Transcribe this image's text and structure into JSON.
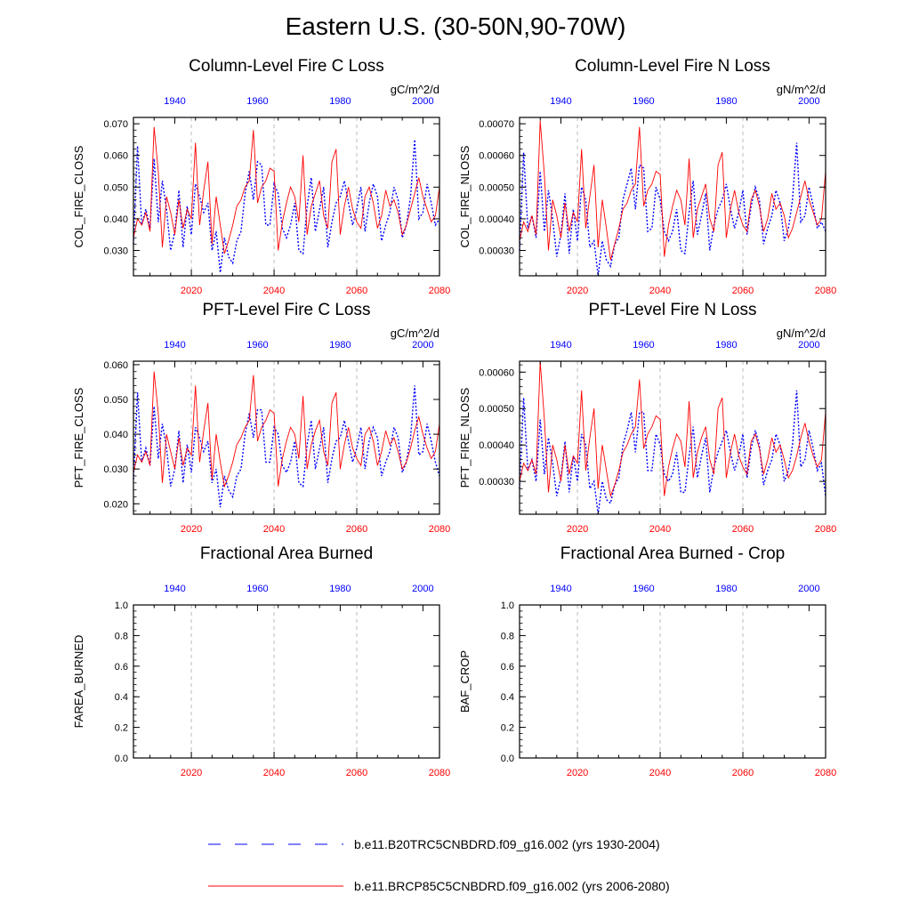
{
  "page": {
    "title": "Eastern U.S. (30-50N,90-70W)"
  },
  "colors": {
    "historical": "#0000ff",
    "future": "#ff0000",
    "grid": "#bbbbbb",
    "axis": "#000000"
  },
  "chart_data": [
    {
      "type": "line",
      "title": "Column-Level Fire C Loss",
      "units": "gC/m^2/d",
      "ylabel": "COL_FIRE_CLOSS",
      "ylim": [
        0.022,
        0.072
      ],
      "yticks": [
        "0.030",
        "0.040",
        "0.050",
        "0.060",
        "0.070"
      ],
      "bottom_axis": {
        "range": [
          2006,
          2080
        ],
        "ticks": [
          "2020",
          "2040",
          "2060",
          "2080"
        ]
      },
      "top_axis": {
        "range": [
          1930,
          2004
        ],
        "ticks": [
          "1940",
          "1960",
          "1980",
          "2000"
        ]
      },
      "grid": "vertical dashed at 2020, 2040, 2060",
      "series": [
        {
          "name": "b.e11.B20TRC5CNBDRD.f09_g16.002 (yrs 1930-2004)",
          "axis": "top",
          "style": "dashed",
          "x_start": 1930,
          "values": [
            0.032,
            0.063,
            0.038,
            0.043,
            0.037,
            0.059,
            0.039,
            0.052,
            0.043,
            0.03,
            0.036,
            0.049,
            0.031,
            0.044,
            0.035,
            0.051,
            0.047,
            0.042,
            0.045,
            0.03,
            0.036,
            0.023,
            0.034,
            0.028,
            0.026,
            0.033,
            0.036,
            0.048,
            0.055,
            0.046,
            0.058,
            0.057,
            0.038,
            0.038,
            0.051,
            0.048,
            0.037,
            0.034,
            0.038,
            0.045,
            0.03,
            0.029,
            0.044,
            0.053,
            0.036,
            0.043,
            0.05,
            0.031,
            0.039,
            0.045,
            0.047,
            0.052,
            0.045,
            0.038,
            0.043,
            0.05,
            0.036,
            0.045,
            0.051,
            0.047,
            0.033,
            0.038,
            0.042,
            0.05,
            0.046,
            0.034,
            0.038,
            0.047,
            0.065,
            0.04,
            0.042,
            0.051,
            0.045,
            0.038,
            0.04
          ]
        },
        {
          "name": "b.e11.BRCP85C5CNBDRD.f09_g16.002 (yrs 2006-2080)",
          "axis": "bottom",
          "style": "solid",
          "x_start": 2006,
          "values": [
            0.034,
            0.04,
            0.038,
            0.042,
            0.036,
            0.069,
            0.055,
            0.031,
            0.047,
            0.042,
            0.035,
            0.046,
            0.037,
            0.043,
            0.04,
            0.064,
            0.038,
            0.049,
            0.058,
            0.032,
            0.047,
            0.038,
            0.029,
            0.033,
            0.038,
            0.044,
            0.046,
            0.05,
            0.052,
            0.068,
            0.045,
            0.05,
            0.052,
            0.056,
            0.055,
            0.03,
            0.039,
            0.045,
            0.05,
            0.047,
            0.039,
            0.06,
            0.035,
            0.044,
            0.048,
            0.052,
            0.041,
            0.037,
            0.058,
            0.062,
            0.035,
            0.044,
            0.05,
            0.043,
            0.039,
            0.037,
            0.047,
            0.05,
            0.045,
            0.037,
            0.041,
            0.049,
            0.044,
            0.046,
            0.042,
            0.035,
            0.038,
            0.043,
            0.048,
            0.053,
            0.047,
            0.043,
            0.039,
            0.041,
            0.05
          ]
        }
      ]
    },
    {
      "type": "line",
      "title": "Column-Level Fire N Loss",
      "units": "gN/m^2/d",
      "ylabel": "COL_FIRE_NLOSS",
      "ylim": [
        0.00022,
        0.00072
      ],
      "yticks": [
        "0.00030",
        "0.00040",
        "0.00050",
        "0.00060",
        "0.00070"
      ],
      "bottom_axis": {
        "range": [
          2006,
          2080
        ],
        "ticks": [
          "2020",
          "2040",
          "2060",
          "2080"
        ]
      },
      "top_axis": {
        "range": [
          1930,
          2004
        ],
        "ticks": [
          "1940",
          "1960",
          "1980",
          "2000"
        ]
      },
      "grid": "vertical dashed at 2020, 2040, 2060",
      "series": [
        {
          "name": "b.e11.B20TRC5CNBDRD.f09_g16.002 (yrs 1930-2004)",
          "axis": "top",
          "style": "dashed",
          "x_start": 1930,
          "values": [
            0.0003,
            0.00061,
            0.00037,
            0.00041,
            0.00034,
            0.00055,
            0.00036,
            0.00049,
            0.0004,
            0.00028,
            0.00035,
            0.00048,
            0.00029,
            0.00043,
            0.00033,
            0.0005,
            0.00046,
            0.00031,
            0.00033,
            0.00022,
            0.00033,
            0.00027,
            0.00025,
            0.00032,
            0.00034,
            0.00046,
            0.00051,
            0.00056,
            0.00043,
            0.00057,
            0.00056,
            0.00036,
            0.00037,
            0.0005,
            0.00046,
            0.00036,
            0.00033,
            0.00036,
            0.00043,
            0.0003,
            0.00029,
            0.00042,
            0.00052,
            0.00035,
            0.00041,
            0.00048,
            0.0003,
            0.00038,
            0.00043,
            0.00046,
            0.00051,
            0.00043,
            0.00037,
            0.00042,
            0.00049,
            0.00035,
            0.00044,
            0.0005,
            0.00046,
            0.00032,
            0.00037,
            0.00041,
            0.00049,
            0.00045,
            0.00033,
            0.00037,
            0.00046,
            0.00064,
            0.00039,
            0.00041,
            0.0005,
            0.00044,
            0.00037,
            0.00039,
            0.00036
          ]
        },
        {
          "name": "b.e11.BRCP85C5CNBDRD.f09_g16.002 (yrs 2006-2080)",
          "axis": "bottom",
          "style": "solid",
          "x_start": 2006,
          "values": [
            0.00033,
            0.00039,
            0.00036,
            0.00041,
            0.00035,
            0.00071,
            0.00054,
            0.0003,
            0.00046,
            0.00041,
            0.00034,
            0.00045,
            0.00036,
            0.00042,
            0.00039,
            0.00062,
            0.00037,
            0.00047,
            0.00057,
            0.00031,
            0.00046,
            0.00037,
            0.00027,
            0.00032,
            0.00037,
            0.00043,
            0.00045,
            0.00049,
            0.00051,
            0.00069,
            0.00044,
            0.00049,
            0.00051,
            0.00055,
            0.00054,
            0.00028,
            0.00038,
            0.00044,
            0.00049,
            0.00046,
            0.00038,
            0.00059,
            0.00034,
            0.00043,
            0.00047,
            0.00051,
            0.0004,
            0.00036,
            0.00057,
            0.00061,
            0.00034,
            0.00043,
            0.00049,
            0.00042,
            0.00038,
            0.00036,
            0.00046,
            0.00049,
            0.00044,
            0.00036,
            0.0004,
            0.00048,
            0.00043,
            0.00045,
            0.00041,
            0.00034,
            0.00037,
            0.00042,
            0.00047,
            0.00052,
            0.00046,
            0.00042,
            0.00038,
            0.0004,
            0.00055
          ]
        }
      ]
    },
    {
      "type": "line",
      "title": "PFT-Level Fire C Loss",
      "units": "gC/m^2/d",
      "ylabel": "PFT_FIRE_CLOSS",
      "ylim": [
        0.017,
        0.061
      ],
      "yticks": [
        "0.020",
        "0.030",
        "0.040",
        "0.050",
        "0.060"
      ],
      "bottom_axis": {
        "range": [
          2006,
          2080
        ],
        "ticks": [
          "2020",
          "2040",
          "2060",
          "2080"
        ]
      },
      "top_axis": {
        "range": [
          1930,
          2004
        ],
        "ticks": [
          "1940",
          "1960",
          "1980",
          "2000"
        ]
      },
      "grid": "vertical dashed at 2020, 2040, 2060",
      "series": [
        {
          "name": "b.e11.B20TRC5CNBDRD.f09_g16.002 (yrs 1930-2004)",
          "axis": "top",
          "style": "dashed",
          "x_start": 1930,
          "values": [
            0.027,
            0.052,
            0.032,
            0.036,
            0.031,
            0.048,
            0.033,
            0.043,
            0.036,
            0.025,
            0.03,
            0.041,
            0.026,
            0.037,
            0.029,
            0.042,
            0.039,
            0.035,
            0.038,
            0.026,
            0.03,
            0.019,
            0.028,
            0.024,
            0.022,
            0.028,
            0.03,
            0.04,
            0.046,
            0.039,
            0.047,
            0.047,
            0.032,
            0.032,
            0.042,
            0.04,
            0.031,
            0.029,
            0.032,
            0.038,
            0.026,
            0.025,
            0.037,
            0.044,
            0.03,
            0.036,
            0.042,
            0.026,
            0.033,
            0.038,
            0.039,
            0.044,
            0.038,
            0.032,
            0.036,
            0.042,
            0.03,
            0.038,
            0.042,
            0.039,
            0.028,
            0.032,
            0.035,
            0.042,
            0.039,
            0.029,
            0.032,
            0.039,
            0.054,
            0.034,
            0.035,
            0.043,
            0.038,
            0.032,
            0.028
          ]
        },
        {
          "name": "b.e11.BRCP85C5CNBDRD.f09_g16.002 (yrs 2006-2080)",
          "axis": "bottom",
          "style": "solid",
          "x_start": 2006,
          "values": [
            0.029,
            0.034,
            0.032,
            0.035,
            0.031,
            0.058,
            0.046,
            0.026,
            0.04,
            0.035,
            0.03,
            0.039,
            0.031,
            0.036,
            0.034,
            0.054,
            0.032,
            0.041,
            0.049,
            0.027,
            0.04,
            0.032,
            0.025,
            0.028,
            0.032,
            0.037,
            0.039,
            0.042,
            0.044,
            0.057,
            0.038,
            0.042,
            0.044,
            0.047,
            0.046,
            0.025,
            0.033,
            0.038,
            0.042,
            0.04,
            0.033,
            0.051,
            0.03,
            0.037,
            0.041,
            0.044,
            0.035,
            0.031,
            0.049,
            0.052,
            0.03,
            0.037,
            0.042,
            0.036,
            0.033,
            0.031,
            0.04,
            0.042,
            0.038,
            0.031,
            0.035,
            0.041,
            0.037,
            0.039,
            0.035,
            0.03,
            0.032,
            0.036,
            0.041,
            0.045,
            0.04,
            0.036,
            0.033,
            0.035,
            0.043
          ]
        }
      ]
    },
    {
      "type": "line",
      "title": "PFT-Level Fire N Loss",
      "units": "gN/m^2/d",
      "ylabel": "PFT_FIRE_NLOSS",
      "ylim": [
        0.00021,
        0.00063
      ],
      "yticks": [
        "0.00030",
        "0.00040",
        "0.00050",
        "0.00060"
      ],
      "bottom_axis": {
        "range": [
          2006,
          2080
        ],
        "ticks": [
          "2020",
          "2040",
          "2060",
          "2080"
        ]
      },
      "top_axis": {
        "range": [
          1930,
          2004
        ],
        "ticks": [
          "1940",
          "1960",
          "1980",
          "2000"
        ]
      },
      "grid": "vertical dashed at 2020, 2040, 2060",
      "series": [
        {
          "name": "b.e11.B20TRC5CNBDRD.f09_g16.002 (yrs 1930-2004)",
          "axis": "top",
          "style": "dashed",
          "x_start": 1930,
          "values": [
            0.00028,
            0.00053,
            0.00033,
            0.00036,
            0.0003,
            0.00047,
            0.00032,
            0.00042,
            0.00035,
            0.00026,
            0.00031,
            0.00041,
            0.00027,
            0.00037,
            0.0003,
            0.00043,
            0.0004,
            0.00028,
            0.0003,
            0.00021,
            0.0003,
            0.00025,
            0.00024,
            0.00029,
            0.00031,
            0.0004,
            0.00044,
            0.00049,
            0.00038,
            0.00049,
            0.00049,
            0.00033,
            0.00033,
            0.00043,
            0.0004,
            0.00032,
            0.0003,
            0.00032,
            0.00038,
            0.00027,
            0.00027,
            0.00037,
            0.00045,
            0.00031,
            0.00037,
            0.00042,
            0.00027,
            0.00034,
            0.00038,
            0.00041,
            0.00044,
            0.00038,
            0.00033,
            0.00037,
            0.00043,
            0.00031,
            0.00039,
            0.00044,
            0.0004,
            0.00029,
            0.00033,
            0.00036,
            0.00043,
            0.0004,
            0.0003,
            0.00033,
            0.0004,
            0.00055,
            0.00034,
            0.00036,
            0.00044,
            0.00039,
            0.00033,
            0.00035,
            0.00026
          ]
        },
        {
          "name": "b.e11.BRCP85C5CNBDRD.f09_g16.002 (yrs 2006-2080)",
          "axis": "bottom",
          "style": "solid",
          "x_start": 2006,
          "values": [
            0.0003,
            0.00035,
            0.00033,
            0.00036,
            0.00032,
            0.00063,
            0.00047,
            0.00027,
            0.0004,
            0.00036,
            0.0003,
            0.0004,
            0.00032,
            0.00037,
            0.00035,
            0.00055,
            0.00033,
            0.00042,
            0.0005,
            0.00028,
            0.0004,
            0.00033,
            0.00026,
            0.00029,
            0.00033,
            0.00038,
            0.0004,
            0.00043,
            0.00045,
            0.00058,
            0.00039,
            0.00043,
            0.00045,
            0.00048,
            0.00047,
            0.00026,
            0.00034,
            0.00039,
            0.00043,
            0.00041,
            0.00034,
            0.00052,
            0.00031,
            0.00038,
            0.00042,
            0.00045,
            0.00036,
            0.00032,
            0.0005,
            0.00053,
            0.00031,
            0.00038,
            0.00043,
            0.00037,
            0.00034,
            0.00032,
            0.00041,
            0.00043,
            0.00039,
            0.00032,
            0.00036,
            0.00042,
            0.00038,
            0.0004,
            0.00036,
            0.00031,
            0.00033,
            0.00037,
            0.00042,
            0.00046,
            0.00041,
            0.00037,
            0.00034,
            0.00036,
            0.00049
          ]
        }
      ]
    },
    {
      "type": "line",
      "title": "Fractional Area Burned",
      "units": "",
      "ylabel": "FAREA_BURNED",
      "ylim": [
        0,
        1
      ],
      "yticks": [
        "0.0",
        "0.2",
        "0.4",
        "0.6",
        "0.8",
        "1.0"
      ],
      "bottom_axis": {
        "range": [
          2006,
          2080
        ],
        "ticks": [
          "2020",
          "2040",
          "2060",
          "2080"
        ]
      },
      "top_axis": {
        "range": [
          1930,
          2004
        ],
        "ticks": [
          "1940",
          "1960",
          "1980",
          "2000"
        ]
      },
      "grid": "vertical dashed at 2020, 2040, 2060",
      "series": []
    },
    {
      "type": "line",
      "title": "Fractional Area Burned - Crop",
      "units": "",
      "ylabel": "BAF_CROP",
      "ylim": [
        0,
        1
      ],
      "yticks": [
        "0.0",
        "0.2",
        "0.4",
        "0.6",
        "0.8",
        "1.0"
      ],
      "bottom_axis": {
        "range": [
          2006,
          2080
        ],
        "ticks": [
          "2020",
          "2040",
          "2060",
          "2080"
        ]
      },
      "top_axis": {
        "range": [
          1930,
          2004
        ],
        "ticks": [
          "1940",
          "1960",
          "1980",
          "2000"
        ]
      },
      "grid": "vertical dashed at 2020, 2040, 2060",
      "series": []
    }
  ],
  "legend": {
    "items": [
      {
        "label": "b.e11.B20TRC5CNBDRD.f09_g16.002 (yrs 1930-2004)",
        "style": "dashed",
        "color": "#0000ff"
      },
      {
        "label": "b.e11.BRCP85C5CNBDRD.f09_g16.002 (yrs 2006-2080)",
        "style": "solid",
        "color": "#ff0000"
      }
    ]
  }
}
